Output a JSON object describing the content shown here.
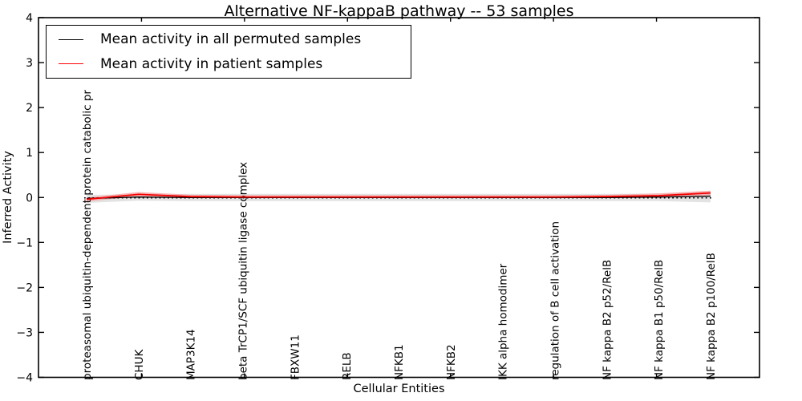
{
  "figure": {
    "title": "Alternative NF-kappaB pathway -- 53 samples",
    "xlabel": "Cellular Entities",
    "ylabel": "Inferred Activity"
  },
  "legend": {
    "position": "upper left",
    "items": [
      {
        "label": "Mean activity in all permuted samples",
        "color": "#000000"
      },
      {
        "label": "Mean activity in patient samples",
        "color": "#ff0000"
      }
    ]
  },
  "chart_data": {
    "type": "line",
    "title": "Alternative NF-kappaB pathway -- 53 samples",
    "xlabel": "Cellular Entities",
    "ylabel": "Inferred Activity",
    "ylim": [
      -4,
      4
    ],
    "ytick_labels": [
      "4",
      "3",
      "2",
      "1",
      "0",
      "−1",
      "−2",
      "−3",
      "−4"
    ],
    "ytick_values": [
      4,
      3,
      2,
      1,
      0,
      -1,
      -2,
      -3,
      -4
    ],
    "grid": false,
    "legend_position": "upper left",
    "categories": [
      "proteasomal ubiquitin-dependent protein catabolic pr",
      "CHUK",
      "MAP3K14",
      "beta TrCP1/SCF ubiquitin ligase complex",
      "FBXW11",
      "RELB",
      "NFKB1",
      "NFKB2",
      "IKK alpha homodimer",
      "regulation of B cell activation",
      "NF kappa B2 p52/RelB",
      "NF kappa B1 p50/RelB",
      "NF kappa B2 p100/RelB"
    ],
    "zero_line": {
      "value": 0,
      "style": "dotted",
      "color": "#000000"
    },
    "series": [
      {
        "name": "Mean activity in all permuted samples",
        "color": "#000000",
        "line_width": 1.4,
        "values": [
          -0.02,
          0.01,
          0.0,
          0.0,
          0.0,
          0.0,
          0.0,
          0.0,
          0.0,
          0.0,
          0.0,
          0.01,
          0.03
        ],
        "band_hi": [
          0.06,
          0.07,
          0.08,
          0.08,
          0.08,
          0.08,
          0.08,
          0.08,
          0.08,
          0.08,
          0.08,
          0.09,
          0.14
        ],
        "band_lo": [
          -0.12,
          -0.07,
          -0.08,
          -0.08,
          -0.08,
          -0.08,
          -0.08,
          -0.08,
          -0.08,
          -0.08,
          -0.08,
          -0.08,
          -0.11
        ],
        "band_color": "#e2e2e2"
      },
      {
        "name": "Mean activity in patient samples",
        "color": "#f40000",
        "line_width": 1.7,
        "values": [
          -0.04,
          0.07,
          0.02,
          0.01,
          0.01,
          0.01,
          0.01,
          0.01,
          0.01,
          0.01,
          0.02,
          0.04,
          0.1
        ],
        "band_hi": [
          0.0,
          0.12,
          0.06,
          0.05,
          0.05,
          0.05,
          0.05,
          0.05,
          0.05,
          0.05,
          0.06,
          0.09,
          0.15
        ],
        "band_lo": [
          -0.09,
          0.03,
          -0.01,
          -0.01,
          -0.01,
          -0.01,
          -0.01,
          -0.01,
          -0.01,
          -0.01,
          0.0,
          0.01,
          0.05
        ],
        "band_color": "#f7a4a4"
      }
    ]
  }
}
